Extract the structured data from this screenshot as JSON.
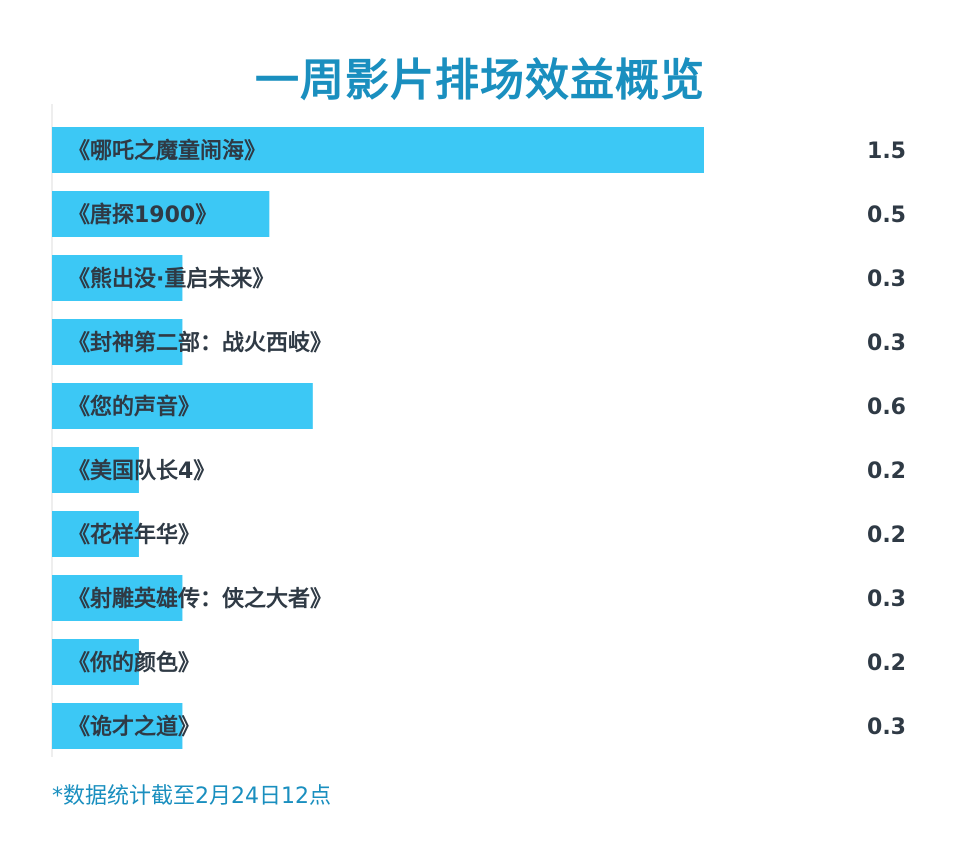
{
  "title": "一周影片排场效益概览",
  "footnote": "*数据统计截至2月24日12点",
  "colors": {
    "bar": "#3cc8f5",
    "title": "#1a8fbf",
    "text": "#2f3a45",
    "axis": "#dcdcdc"
  },
  "chart_data": {
    "type": "bar",
    "orientation": "horizontal",
    "title": "一周影片排场效益概览",
    "categories": [
      "《哪吒之魔童闹海》",
      "《唐探1900》",
      "《熊出没·重启未来》",
      "《封神第二部：战火西岐》",
      "《您的声音》",
      "《美国队长4》",
      "《花样年华》",
      "《射雕英雄传：侠之大者》",
      "《你的颜色》",
      "《诡才之道》"
    ],
    "values": [
      1.5,
      0.5,
      0.3,
      0.3,
      0.6,
      0.2,
      0.2,
      0.3,
      0.2,
      0.3
    ],
    "value_labels": [
      "1.5",
      "0.5",
      "0.3",
      "0.3",
      "0.6",
      "0.2",
      "0.2",
      "0.3",
      "0.2",
      "0.3"
    ],
    "xlim": [
      0,
      1.5
    ],
    "xlabel": "",
    "ylabel": "",
    "grid": false,
    "legend": "none"
  }
}
